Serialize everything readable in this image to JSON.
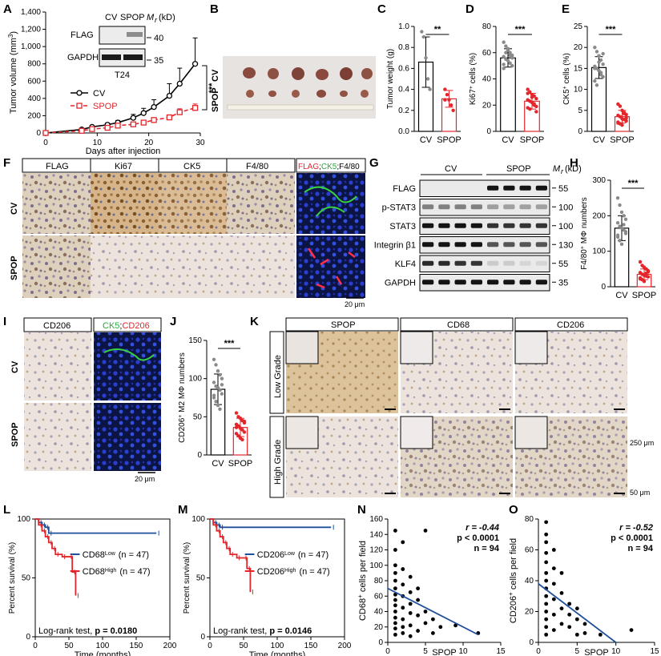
{
  "panels": {
    "A": {
      "label": "A",
      "chart_data": {
        "type": "line",
        "ylabel": "Tumor volume (mm",
        "ylabel_sup": "3",
        "ylabel_close": ")",
        "xlabel": "Days after injection",
        "yticks": [
          "0",
          "200",
          "400",
          "600",
          "800",
          "1,000",
          "1,200",
          "1,400"
        ],
        "ylim": [
          0,
          1400
        ],
        "xticks": [
          "0",
          "10",
          "20",
          "30"
        ],
        "xlim": [
          0,
          30
        ],
        "significance": "***",
        "series": [
          {
            "name": "CV",
            "x": [
              0,
              7,
              9,
              12,
              14,
              17,
              19,
              21,
              24,
              26,
              29
            ],
            "y": [
              0,
              40,
              70,
              95,
              120,
              175,
              230,
              300,
              430,
              570,
              800
            ],
            "err": [
              0,
              10,
              15,
              20,
              25,
              40,
              55,
              85,
              140,
              180,
              300
            ],
            "color": "#000000"
          },
          {
            "name": "SPOP",
            "x": [
              0,
              7,
              9,
              12,
              14,
              17,
              19,
              21,
              24,
              26,
              29
            ],
            "y": [
              0,
              25,
              45,
              60,
              85,
              100,
              120,
              150,
              180,
              240,
              290
            ],
            "err": [
              0,
              8,
              10,
              12,
              15,
              18,
              20,
              25,
              30,
              40,
              45
            ],
            "color": "#e3262b"
          }
        ]
      },
      "blot": {
        "header_cv": "CV",
        "header_spop": "SPOP",
        "header_mr": "M",
        "header_mr_sub": "r",
        "header_kd": "(kD)",
        "rows": [
          "FLAG",
          "GAPDH"
        ],
        "markers": [
          "40",
          "35"
        ],
        "cell_line": "T24"
      }
    },
    "B": {
      "label": "B",
      "rows": [
        "CV",
        "SPOP"
      ]
    },
    "C": {
      "label": "C",
      "chart_data": {
        "type": "bar",
        "ylabel": "Tumor weight (g)",
        "categories": [
          "CV",
          "SPOP"
        ],
        "values": [
          0.66,
          0.31
        ],
        "err": [
          0.24,
          0.08
        ],
        "ylim": [
          0,
          1.0
        ],
        "yticks": [
          "0.0",
          "0.2",
          "0.4",
          "0.6",
          "0.8",
          "1.0"
        ],
        "significance": "**",
        "points": [
          [
            0.95,
            0.9,
            0.7,
            0.5,
            0.4
          ],
          [
            0.4,
            0.35,
            0.3,
            0.25,
            0.2,
            0.3
          ]
        ]
      }
    },
    "D": {
      "label": "D",
      "chart_data": {
        "type": "bar",
        "ylabel_pre": "Ki67",
        "ylabel_sup": "+",
        "ylabel_post": " cells (%)",
        "categories": [
          "CV",
          "SPOP"
        ],
        "values": [
          56,
          23
        ],
        "err": [
          7,
          6
        ],
        "ylim": [
          0,
          80
        ],
        "yticks": [
          "0",
          "20",
          "40",
          "60",
          "80"
        ],
        "significance": "***",
        "points": [
          [
            68,
            65,
            62,
            60,
            58,
            57,
            55,
            54,
            52,
            50,
            48,
            60,
            63,
            58,
            56,
            51
          ],
          [
            32,
            30,
            28,
            27,
            25,
            24,
            23,
            22,
            20,
            19,
            18,
            17,
            26,
            21,
            15,
            29
          ]
        ]
      }
    },
    "E": {
      "label": "E",
      "chart_data": {
        "type": "bar",
        "ylabel_pre": "CK5",
        "ylabel_sup": "+",
        "ylabel_post": " cells (%)",
        "categories": [
          "CV",
          "SPOP"
        ],
        "values": [
          15.2,
          3.5
        ],
        "err": [
          2.6,
          1.5
        ],
        "ylim": [
          0,
          25
        ],
        "yticks": [
          "0",
          "5",
          "10",
          "15",
          "20",
          "25"
        ],
        "significance": "***",
        "points": [
          [
            20,
            19,
            18,
            17,
            16,
            15.5,
            15,
            14.5,
            14,
            13,
            12,
            11,
            16.5,
            13.5,
            18.5,
            15
          ],
          [
            6.5,
            6,
            5,
            4.5,
            4,
            3.8,
            3.5,
            3,
            2.8,
            2.5,
            2,
            1.8,
            1.5,
            4.2,
            3.2,
            2.2
          ]
        ]
      }
    },
    "F": {
      "label": "F",
      "columns": [
        "FLAG",
        "Ki67",
        "CK5",
        "F4/80"
      ],
      "merge_flag": "FLAG",
      "merge_sep1": ";",
      "merge_ck5": "CK5",
      "merge_sep2": ";",
      "merge_f480": "F4/80",
      "rows": [
        "CV",
        "SPOP"
      ],
      "scale": "20 μm"
    },
    "G": {
      "label": "G",
      "header_cv": "CV",
      "header_spop": "SPOP",
      "header_mr": "M",
      "header_mr_sub": "r",
      "header_kd": "(kD)",
      "rows": [
        "FLAG",
        "p-STAT3",
        "STAT3",
        "Integrin β1",
        "KLF4",
        "GAPDH"
      ],
      "markers": [
        "55",
        "100",
        "100",
        "130",
        "55",
        "35"
      ]
    },
    "H": {
      "label": "H",
      "chart_data": {
        "type": "bar",
        "ylabel_pre": "F4/80",
        "ylabel_sup": "+",
        "ylabel_post": " MΦ numbers",
        "categories": [
          "CV",
          "SPOP"
        ],
        "values": [
          165,
          35
        ],
        "err": [
          35,
          15
        ],
        "ylim": [
          0,
          300
        ],
        "yticks": [
          "0",
          "100",
          "200",
          "300"
        ],
        "significance": "***",
        "points": [
          [
            250,
            230,
            210,
            200,
            190,
            180,
            170,
            165,
            160,
            150,
            140,
            130,
            120,
            175,
            155,
            145
          ],
          [
            70,
            60,
            55,
            50,
            45,
            40,
            35,
            32,
            30,
            28,
            25,
            20,
            15,
            38,
            42,
            22
          ]
        ]
      }
    },
    "I": {
      "label": "I",
      "col1": "CD206",
      "col2_a": "CK5",
      "col2_sep": ";",
      "col2_b": "CD206",
      "rows": [
        "CV",
        "SPOP"
      ],
      "scale": "20 μm"
    },
    "J": {
      "label": "J",
      "chart_data": {
        "type": "bar",
        "ylabel_pre": "CD206",
        "ylabel_sup": "+",
        "ylabel_post": " M2 MΦ numbers",
        "categories": [
          "CV",
          "SPOP"
        ],
        "values": [
          86,
          36
        ],
        "err": [
          20,
          12
        ],
        "ylim": [
          0,
          150
        ],
        "yticks": [
          "0",
          "50",
          "100",
          "150"
        ],
        "significance": "***",
        "points": [
          [
            125,
            118,
            110,
            105,
            100,
            95,
            90,
            88,
            85,
            80,
            75,
            70,
            65,
            60,
            92,
            78
          ],
          [
            55,
            50,
            48,
            45,
            42,
            40,
            38,
            35,
            33,
            30,
            28,
            25,
            22,
            20,
            44,
            36
          ]
        ]
      }
    },
    "K": {
      "label": "K",
      "columns": [
        "SPOP",
        "CD68",
        "CD206"
      ],
      "rows": [
        "Low Grade",
        "High Grade"
      ],
      "scale_large": "250 μm",
      "scale_small": "50 μm"
    },
    "L": {
      "label": "L",
      "chart_data": {
        "type": "line",
        "ylabel": "Percent survival (%)",
        "xlabel": "Time (months)",
        "yticks": [
          "0",
          "50",
          "100"
        ],
        "xticks": [
          "0",
          "50",
          "100",
          "150",
          "200"
        ],
        "ylim": [
          0,
          100
        ],
        "xlim": [
          0,
          200
        ],
        "series": [
          {
            "name": "CD68",
            "sup": "Low",
            "n": "(n = 47)",
            "color": "#1f4e9c",
            "x": [
              0,
              5,
              10,
              15,
              20,
              180
            ],
            "y": [
              100,
              97,
              95,
              93,
              88,
              88
            ]
          },
          {
            "name": "CD68",
            "sup": "High",
            "n": "(n = 47)",
            "color": "#e3262b",
            "x": [
              0,
              5,
              10,
              15,
              20,
              25,
              30,
              40,
              50,
              55,
              60
            ],
            "y": [
              100,
              95,
              90,
              85,
              80,
              75,
              70,
              68,
              68,
              55,
              35
            ]
          }
        ],
        "annotation_pre": "Log-rank test, ",
        "annotation_val": "p = 0.0180"
      }
    },
    "M": {
      "label": "M",
      "chart_data": {
        "type": "line",
        "ylabel": "Percent survival (%)",
        "xlabel": "Time (months)",
        "yticks": [
          "0",
          "50",
          "100"
        ],
        "xticks": [
          "0",
          "50",
          "100",
          "150",
          "200"
        ],
        "ylim": [
          0,
          100
        ],
        "xlim": [
          0,
          200
        ],
        "series": [
          {
            "name": "CD206",
            "sup": "Low",
            "n": "(n = 47)",
            "color": "#1f4e9c",
            "x": [
              0,
              5,
              10,
              15,
              180
            ],
            "y": [
              100,
              97,
              95,
              93,
              93
            ]
          },
          {
            "name": "CD206",
            "sup": "High",
            "n": "(n = 47)",
            "color": "#e3262b",
            "x": [
              0,
              5,
              10,
              15,
              20,
              25,
              30,
              40,
              50,
              55,
              60
            ],
            "y": [
              100,
              95,
              90,
              85,
              80,
              75,
              70,
              67,
              67,
              58,
              38
            ]
          }
        ],
        "annotation_pre": "Log-rank test, ",
        "annotation_val": "p = 0.0146"
      }
    },
    "N": {
      "label": "N",
      "chart_data": {
        "type": "scatter",
        "ylabel_pre": "CD68",
        "ylabel_sup": "+",
        "ylabel_post": " cells per field",
        "xlabel": "SPOP",
        "xticks": [
          "0",
          "5",
          "10",
          "15"
        ],
        "yticks": [
          "0",
          "20",
          "40",
          "60",
          "80",
          "100",
          "120",
          "140",
          "160"
        ],
        "xlim": [
          0,
          15
        ],
        "ylim": [
          0,
          160
        ],
        "r": "r = -0.44",
        "p": "p < 0.0001",
        "n": "n = 94",
        "trend": [
          [
            0,
            70
          ],
          [
            12,
            10
          ]
        ],
        "points": [
          [
            1,
            145
          ],
          [
            1,
            120
          ],
          [
            1,
            100
          ],
          [
            1,
            90
          ],
          [
            1,
            80
          ],
          [
            1,
            70
          ],
          [
            1,
            62
          ],
          [
            1,
            55
          ],
          [
            1,
            48
          ],
          [
            1,
            40
          ],
          [
            1,
            32
          ],
          [
            1,
            25
          ],
          [
            1,
            18
          ],
          [
            1,
            10
          ],
          [
            2,
            130
          ],
          [
            2,
            95
          ],
          [
            2,
            75
          ],
          [
            2,
            60
          ],
          [
            2,
            45
          ],
          [
            2,
            30
          ],
          [
            2,
            20
          ],
          [
            2,
            12
          ],
          [
            3,
            85
          ],
          [
            3,
            65
          ],
          [
            3,
            50
          ],
          [
            3,
            38
          ],
          [
            3,
            22
          ],
          [
            3,
            8
          ],
          [
            4,
            70
          ],
          [
            4,
            55
          ],
          [
            4,
            35
          ],
          [
            4,
            15
          ],
          [
            5,
            145
          ],
          [
            5,
            40
          ],
          [
            5,
            25
          ],
          [
            6,
            30
          ],
          [
            6,
            12
          ],
          [
            7,
            20
          ],
          [
            9,
            22
          ],
          [
            12,
            12
          ]
        ]
      }
    },
    "O": {
      "label": "O",
      "chart_data": {
        "type": "scatter",
        "ylabel_pre": "CD206",
        "ylabel_sup": "+",
        "ylabel_post": " cells per field",
        "xlabel": "SPOP",
        "xticks": [
          "0",
          "5",
          "10",
          "15"
        ],
        "yticks": [
          "0",
          "20",
          "40",
          "60",
          "80"
        ],
        "xlim": [
          0,
          15
        ],
        "ylim": [
          0,
          80
        ],
        "r": "r = -0.52",
        "p": "p < 0.0001",
        "n": "n = 94",
        "trend": [
          [
            0,
            38
          ],
          [
            10,
            0
          ]
        ],
        "points": [
          [
            1,
            78
          ],
          [
            1,
            70
          ],
          [
            1,
            65
          ],
          [
            1,
            58
          ],
          [
            1,
            52
          ],
          [
            1,
            45
          ],
          [
            1,
            40
          ],
          [
            1,
            35
          ],
          [
            1,
            30
          ],
          [
            1,
            25
          ],
          [
            1,
            20
          ],
          [
            1,
            15
          ],
          [
            1,
            10
          ],
          [
            1,
            5
          ],
          [
            2,
            60
          ],
          [
            2,
            48
          ],
          [
            2,
            38
          ],
          [
            2,
            28
          ],
          [
            2,
            18
          ],
          [
            2,
            8
          ],
          [
            3,
            45
          ],
          [
            3,
            32
          ],
          [
            3,
            22
          ],
          [
            3,
            12
          ],
          [
            4,
            25
          ],
          [
            4,
            18
          ],
          [
            4,
            10
          ],
          [
            5,
            22
          ],
          [
            5,
            15
          ],
          [
            5,
            5
          ],
          [
            6,
            12
          ],
          [
            6,
            6
          ],
          [
            8,
            5
          ],
          [
            12,
            8
          ]
        ]
      }
    }
  }
}
